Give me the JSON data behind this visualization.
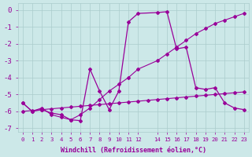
{
  "line1_x": [
    0,
    1,
    2,
    3,
    4,
    5,
    6,
    7,
    8,
    9,
    10,
    11,
    12,
    14,
    15,
    16,
    17,
    18,
    19,
    20,
    21,
    22,
    23
  ],
  "line1_y": [
    -5.5,
    -6.0,
    -5.8,
    -6.2,
    -6.35,
    -6.5,
    -6.2,
    -5.8,
    -5.3,
    -4.8,
    -4.4,
    -4.0,
    -3.5,
    -3.0,
    -2.6,
    -2.2,
    -1.8,
    -1.4,
    -1.1,
    -0.8,
    -0.6,
    -0.4,
    -0.2
  ],
  "line2_x": [
    0,
    1,
    2,
    3,
    4,
    5,
    6,
    7,
    8,
    9,
    10,
    11,
    12,
    13,
    14,
    15,
    16,
    17,
    18,
    19,
    20,
    21,
    22,
    23
  ],
  "line2_y": [
    -6.0,
    -5.95,
    -5.9,
    -5.85,
    -5.8,
    -5.75,
    -5.7,
    -5.65,
    -5.6,
    -5.55,
    -5.5,
    -5.45,
    -5.4,
    -5.35,
    -5.3,
    -5.25,
    -5.2,
    -5.15,
    -5.1,
    -5.05,
    -5.0,
    -4.95,
    -4.9,
    -4.85
  ],
  "line3_x": [
    0,
    1,
    2,
    3,
    4,
    5,
    6,
    7,
    8,
    9,
    10,
    11,
    12,
    14,
    15,
    16,
    17,
    18,
    19,
    20,
    21,
    22,
    23
  ],
  "line3_y": [
    -5.5,
    -6.0,
    -5.9,
    -6.1,
    -6.2,
    -6.5,
    -6.55,
    -3.5,
    -4.8,
    -5.9,
    -4.8,
    -0.7,
    -0.2,
    -0.15,
    -0.1,
    -2.3,
    -2.2,
    -4.6,
    -4.7,
    -4.6,
    -5.5,
    -5.8,
    -5.9
  ],
  "bg_color": "#cce8e8",
  "grid_color": "#aacccc",
  "line_color": "#990099",
  "xlabel": "Windchill (Refroidissement éolien,°C)",
  "xlim": [
    -0.5,
    23.5
  ],
  "ylim": [
    -7.2,
    0.4
  ],
  "yticks": [
    0,
    -1,
    -2,
    -3,
    -4,
    -5,
    -6,
    -7
  ],
  "xticks": [
    0,
    1,
    2,
    3,
    4,
    5,
    6,
    7,
    8,
    9,
    10,
    11,
    12,
    14,
    15,
    16,
    17,
    18,
    19,
    20,
    21,
    22,
    23
  ],
  "xtick_labels": [
    "0",
    "1",
    "2",
    "3",
    "4",
    "5",
    "6",
    "7",
    "8",
    "9",
    "10",
    "11",
    "12",
    "14",
    "15",
    "16",
    "17",
    "18",
    "19",
    "20",
    "21",
    "22",
    "23"
  ]
}
